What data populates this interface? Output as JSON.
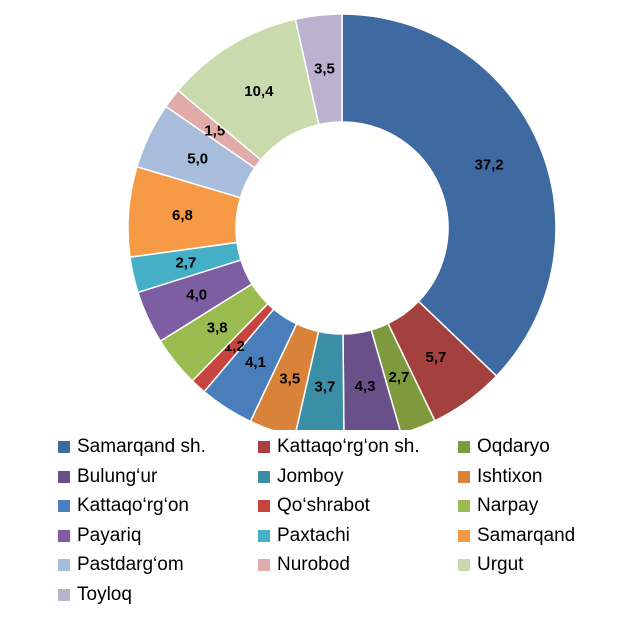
{
  "chart_data": {
    "type": "donut",
    "title": "",
    "categories": [
      "Samarqand sh.",
      "Kattaqo‘rg‘on sh.",
      "Oqdaryo",
      "Bulung‘ur",
      "Jomboy",
      "Ishtixon",
      "Kattaqo‘rg‘on",
      "Qo‘shrabot",
      "Narpay",
      "Payariq",
      "Paxtachi",
      "Samarqand",
      "Pastdarg‘om",
      "Nurobod",
      "Urgut",
      "Toyloq"
    ],
    "values": [
      37.2,
      5.7,
      2.7,
      4.3,
      3.7,
      3.5,
      4.1,
      1.2,
      3.8,
      4.0,
      2.7,
      6.8,
      5.0,
      1.5,
      10.4,
      3.5
    ],
    "labels": [
      "37,2",
      "5,7",
      "2,7",
      "4,3",
      "3,7",
      "3,5",
      "4,1",
      "1,2",
      "3,8",
      "4,0",
      "2,7",
      "6,8",
      "5,0",
      "1,5",
      "10,4",
      "3,5"
    ],
    "colors": [
      "#3F6AA1",
      "#A4403D",
      "#7E9A3D",
      "#6A5089",
      "#3A8FA6",
      "#D9823A",
      "#4A7EBB",
      "#C8443E",
      "#99BB4F",
      "#7E5EA2",
      "#44AFC6",
      "#F69A46",
      "#A8BCDB",
      "#E0ABA9",
      "#C9DBAC",
      "#BCB1CF"
    ],
    "direction": "clockwise",
    "start": "top",
    "legend": "bottom",
    "legend_columns": 3
  }
}
